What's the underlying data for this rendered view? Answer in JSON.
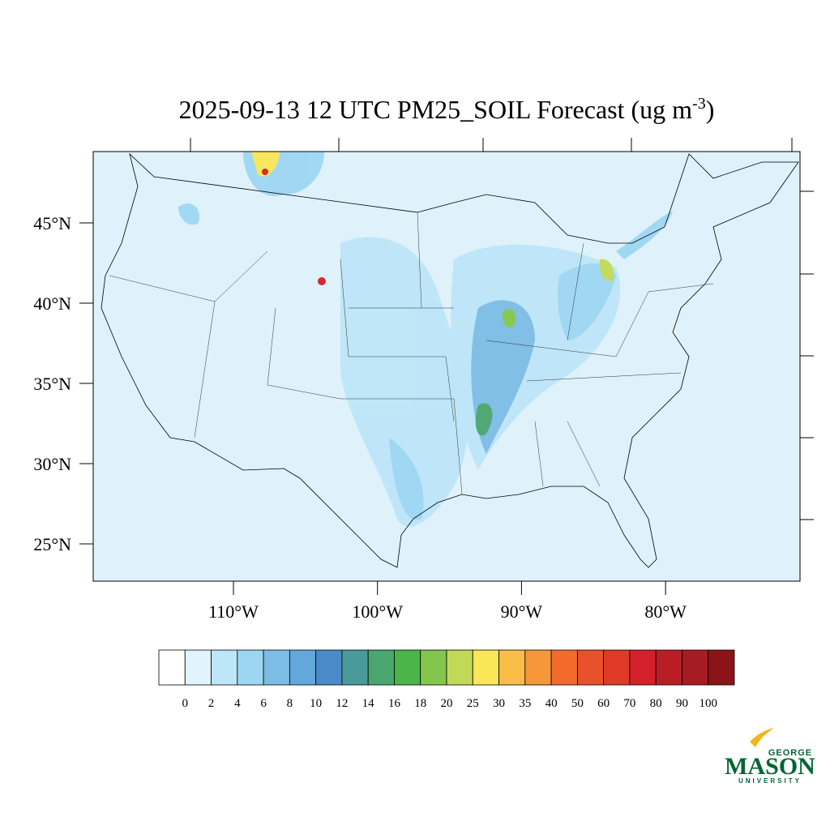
{
  "map": {
    "title": {
      "text": "2025-09-13 12 UTC PM25_SOIL Forecast (ug m",
      "superscript": "-3",
      "close": ")"
    },
    "lat_ticks": [
      {
        "value": 45,
        "label": "45°N"
      },
      {
        "value": 40,
        "label": "40°N"
      },
      {
        "value": 35,
        "label": "35°N"
      },
      {
        "value": 30,
        "label": "30°N"
      },
      {
        "value": 25,
        "label": "25°N"
      }
    ],
    "lon_ticks": [
      {
        "value": -110,
        "label": "110°W"
      },
      {
        "value": -100,
        "label": "100°W"
      },
      {
        "value": -90,
        "label": "90°W"
      },
      {
        "value": -80,
        "label": "80°W"
      }
    ],
    "colorbar": {
      "levels": [
        0,
        2,
        4,
        6,
        8,
        10,
        12,
        14,
        16,
        18,
        20,
        25,
        30,
        35,
        40,
        50,
        60,
        70,
        80,
        90,
        100
      ],
      "colors": [
        "#ffffff",
        "#e1f3fc",
        "#bde6f8",
        "#9dd6f3",
        "#7dbde6",
        "#64a8db",
        "#4a8ac8",
        "#4a9a9a",
        "#4aa66e",
        "#4bb549",
        "#83c64d",
        "#c2d958",
        "#f9e757",
        "#f9bd48",
        "#f6983a",
        "#f26b2b",
        "#e8512b",
        "#df3a28",
        "#d3202a",
        "#b91e25",
        "#a61c22",
        "#8c1419"
      ]
    },
    "logo": {
      "top": "GEORGE",
      "main": "MASON",
      "bottom": "UNIVERSITY"
    }
  }
}
